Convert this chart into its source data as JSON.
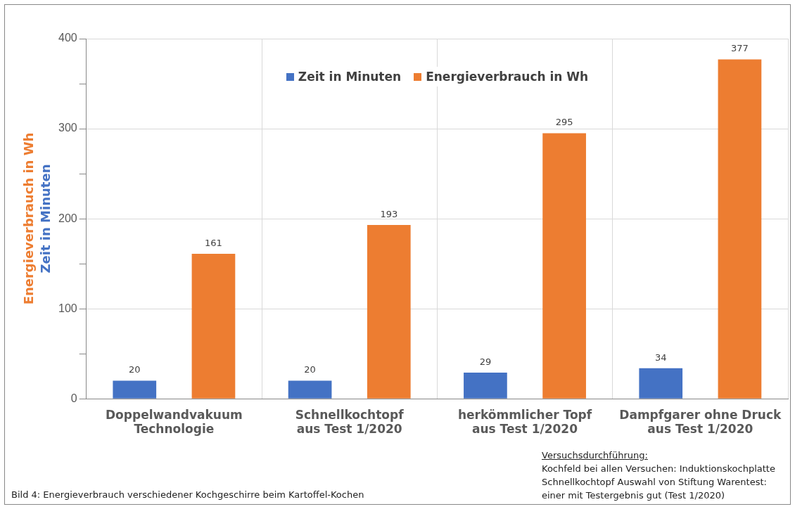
{
  "chart_data": {
    "type": "bar",
    "categories": [
      "Doppelwandvakuum\nTechnologie",
      "Schnellkochtopf\naus Test 1/2020",
      "herkömmlicher Topf\naus Test 1/2020",
      "Dampfgarer ohne Druck\naus Test 1/2020"
    ],
    "series": [
      {
        "name": "Zeit in Minuten",
        "color": "#4472c4",
        "values": [
          20,
          20,
          29,
          34
        ]
      },
      {
        "name": "Energieverbrauch in Wh",
        "color": "#ed7d31",
        "values": [
          161,
          193,
          295,
          377
        ]
      }
    ],
    "ylabel": "Energieverbrauch in Wh",
    "ylim": [
      0,
      400
    ],
    "yticks": [
      0,
      {
        "value": 50,
        "label": null
      },
      100,
      {
        "value": 150,
        "label": null
      },
      200,
      {
        "value": 250,
        "label": null
      },
      300,
      {
        "value": 350,
        "label": null
      },
      400
    ],
    "grid": true,
    "legend": "top",
    "data_labels": true,
    "annotations": [
      "Zeit in Minuten",
      "Bild 4: Energieverbrauch verschiedener Kochgeschirre beim Kartoffel-Kochen",
      "Versuchsdurchführung:",
      "Kochfeld bei allen Versuchen: Induktionskochplatte",
      "Schnellkochtopf Auswahl von Stiftung Warentest:",
      "einer mit Testergebnis gut (Test 1/2020)"
    ]
  }
}
